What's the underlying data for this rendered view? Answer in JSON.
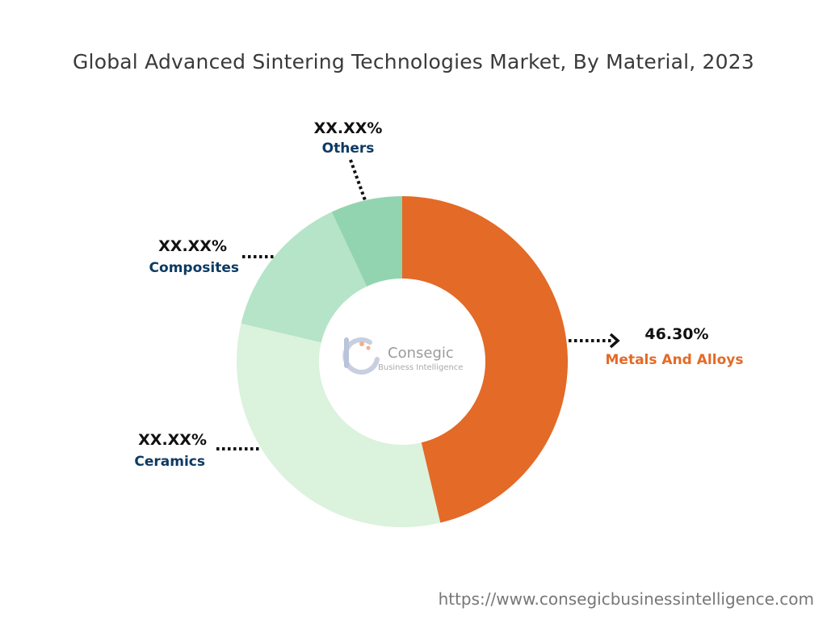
{
  "chart_data": {
    "type": "pie",
    "variant": "donut",
    "title": "Global Advanced Sintering Technologies Market, By Material, 2023",
    "slices": [
      {
        "name": "Metals And Alloys",
        "value": 46.3,
        "label": "46.30%",
        "color": "#e36a27",
        "label_color": "#e36a27"
      },
      {
        "name": "Ceramics",
        "value": 32.4,
        "label": "XX.XX%",
        "color": "#dbf2dc",
        "label_color": "#0d3a63"
      },
      {
        "name": "Composites",
        "value": 14.3,
        "label": "XX.XX%",
        "color": "#b5e4c8",
        "label_color": "#0d3a63"
      },
      {
        "name": "Others",
        "value": 7.0,
        "label": "XX.XX%",
        "color": "#93d4b0",
        "label_color": "#0d3a63"
      }
    ]
  },
  "logo": {
    "line1": "Consegic",
    "line2": "Business Intelligence"
  },
  "footer": {
    "url": "https://www.consegicbusinessintelligence.com"
  }
}
